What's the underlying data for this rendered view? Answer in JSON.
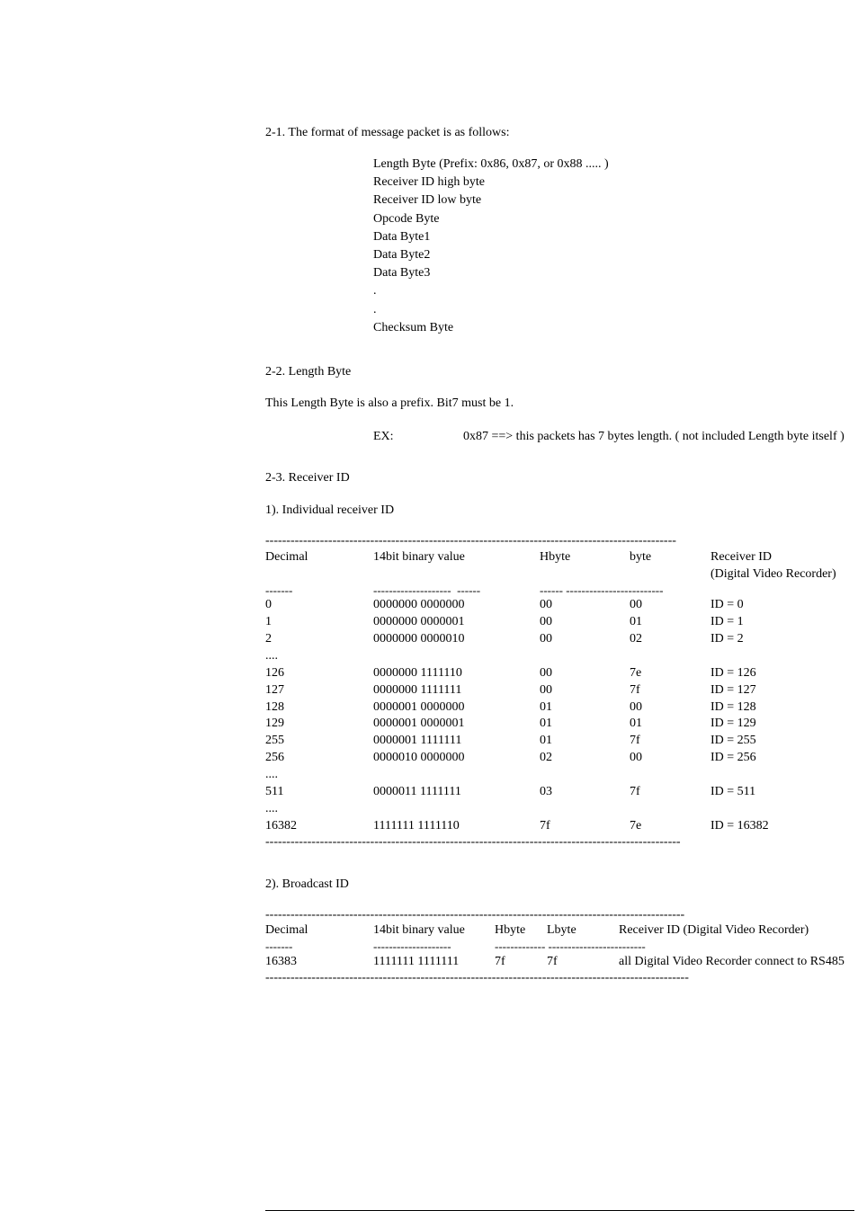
{
  "section21": {
    "heading": "2-1. The format of message packet is as follows:",
    "lines": [
      "Length Byte   (Prefix: 0x86, 0x87, or 0x88 ..... )",
      "Receiver ID high byte",
      "Receiver ID low byte",
      "Opcode Byte",
      "Data Byte1",
      "Data Byte2",
      "Data Byte3",
      ".",
      ".",
      "Checksum Byte"
    ]
  },
  "section22": {
    "heading": "2-2. Length Byte",
    "desc": "This Length Byte is also a prefix. Bit7 must be 1.",
    "ex_label": "EX:",
    "ex_value": "0x87 ==> this packets has 7 bytes length. ( not included Length byte itself )"
  },
  "section23": {
    "heading": "2-3. Receiver ID",
    "sub1": "1). Individual receiver ID",
    "sub2": "2). Broadcast ID"
  },
  "table1": {
    "dash_top": "--------------------------------------------------------------------------------------------------",
    "headers": {
      "c1": "Decimal",
      "c2": "14bit binary value",
      "c3": "Hbyte",
      "c4": "byte",
      "c5_a": "Receiver ID",
      "c5_b": "(Digital Video Recorder)"
    },
    "dash_sub_c1": "-------",
    "dash_sub_c2": "--------------------  ------",
    "dash_sub_c34": "------ -------------------------",
    "rows": [
      {
        "c1": "0",
        "c2": "0000000 0000000",
        "c3": "00",
        "c4": "00",
        "c5": "ID = 0"
      },
      {
        "c1": "1",
        "c2": "0000000 0000001",
        "c3": "00",
        "c4": "01",
        "c5": "ID = 1"
      },
      {
        "c1": "2",
        "c2": "0000000 0000010",
        "c3": "00",
        "c4": "02",
        "c5": "ID = 2"
      },
      {
        "c1": "....",
        "c2": "",
        "c3": "",
        "c4": "",
        "c5": ""
      },
      {
        "c1": "126",
        "c2": "0000000 1111110",
        "c3": "00",
        "c4": "7e",
        "c5": "ID = 126"
      },
      {
        "c1": "127",
        "c2": "0000000 1111111",
        "c3": "00",
        "c4": "7f",
        "c5": "ID = 127"
      },
      {
        "c1": "128",
        "c2": "0000001 0000000",
        "c3": "01",
        "c4": "00",
        "c5": "ID = 128"
      },
      {
        "c1": "129",
        "c2": "0000001 0000001",
        "c3": "01",
        "c4": "01",
        "c5": "ID = 129"
      },
      {
        "c1": "255",
        "c2": "0000001 1111111",
        "c3": "01",
        "c4": "7f",
        "c5": "ID = 255"
      },
      {
        "c1": "256",
        "c2": "0000010 0000000",
        "c3": "02",
        "c4": "00",
        "c5": "ID = 256"
      },
      {
        "c1": "....",
        "c2": "",
        "c3": "",
        "c4": "",
        "c5": ""
      },
      {
        "c1": "511",
        "c2": "0000011 1111111",
        "c3": "03",
        "c4": "7f",
        "c5": "ID = 511"
      },
      {
        "c1": "....",
        "c2": "",
        "c3": "",
        "c4": "",
        "c5": ""
      },
      {
        "c1": "16382",
        "c2": "1111111 1111110",
        "c3": "7f",
        "c4": "7e",
        "c5": "ID = 16382"
      }
    ],
    "dash_bottom": "---------------------------------------------------------------------------------------------------"
  },
  "table2": {
    "dash_top": "----------------------------------------------------------------------------------------------------",
    "headers": {
      "c1": "Decimal",
      "c2": "14bit binary value",
      "c3": "Hbyte",
      "c4": "Lbyte",
      "c5": "Receiver ID (Digital Video Recorder)"
    },
    "dash_sub_c1": "-------",
    "dash_sub_c2": "--------------------",
    "dash_sub_c34": "------------- -------------------------",
    "row": {
      "c1": "16383",
      "c2": "1111111 1111111",
      "c3": "7f",
      "c4": "7f",
      "c5": "all Digital Video Recorder connect to RS485"
    },
    "dash_bottom": "-----------------------------------------------------------------------------------------------------"
  }
}
